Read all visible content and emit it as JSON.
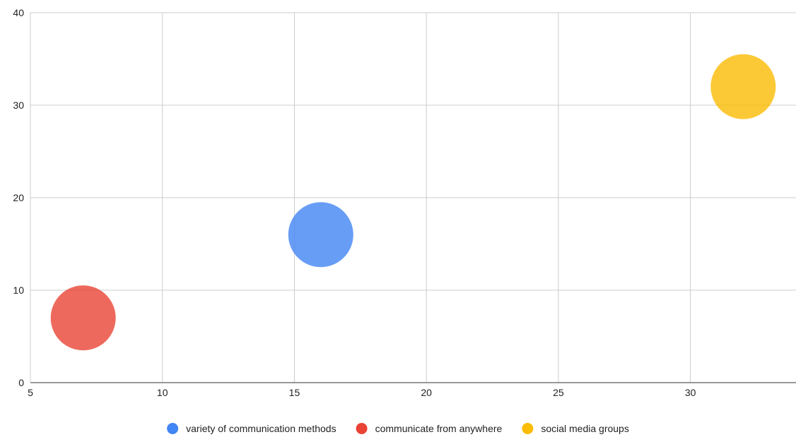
{
  "chart_data": {
    "type": "scatter",
    "subtype": "bubble",
    "title": "",
    "xlabel": "",
    "ylabel": "",
    "xlim": [
      5,
      34
    ],
    "ylim": [
      0,
      40
    ],
    "x_ticks": [
      5,
      10,
      15,
      20,
      25,
      30
    ],
    "y_ticks": [
      0,
      10,
      20,
      30,
      40
    ],
    "grid": true,
    "legend_position": "bottom",
    "series": [
      {
        "name": "variety of communication methods",
        "color": "#4285f4",
        "points": [
          {
            "x": 16,
            "y": 16
          }
        ]
      },
      {
        "name": "communicate from anywhere",
        "color": "#ea4335",
        "points": [
          {
            "x": 7,
            "y": 7
          }
        ]
      },
      {
        "name": "social media groups",
        "color": "#fbbc04",
        "points": [
          {
            "x": 32,
            "y": 32
          }
        ]
      }
    ]
  }
}
